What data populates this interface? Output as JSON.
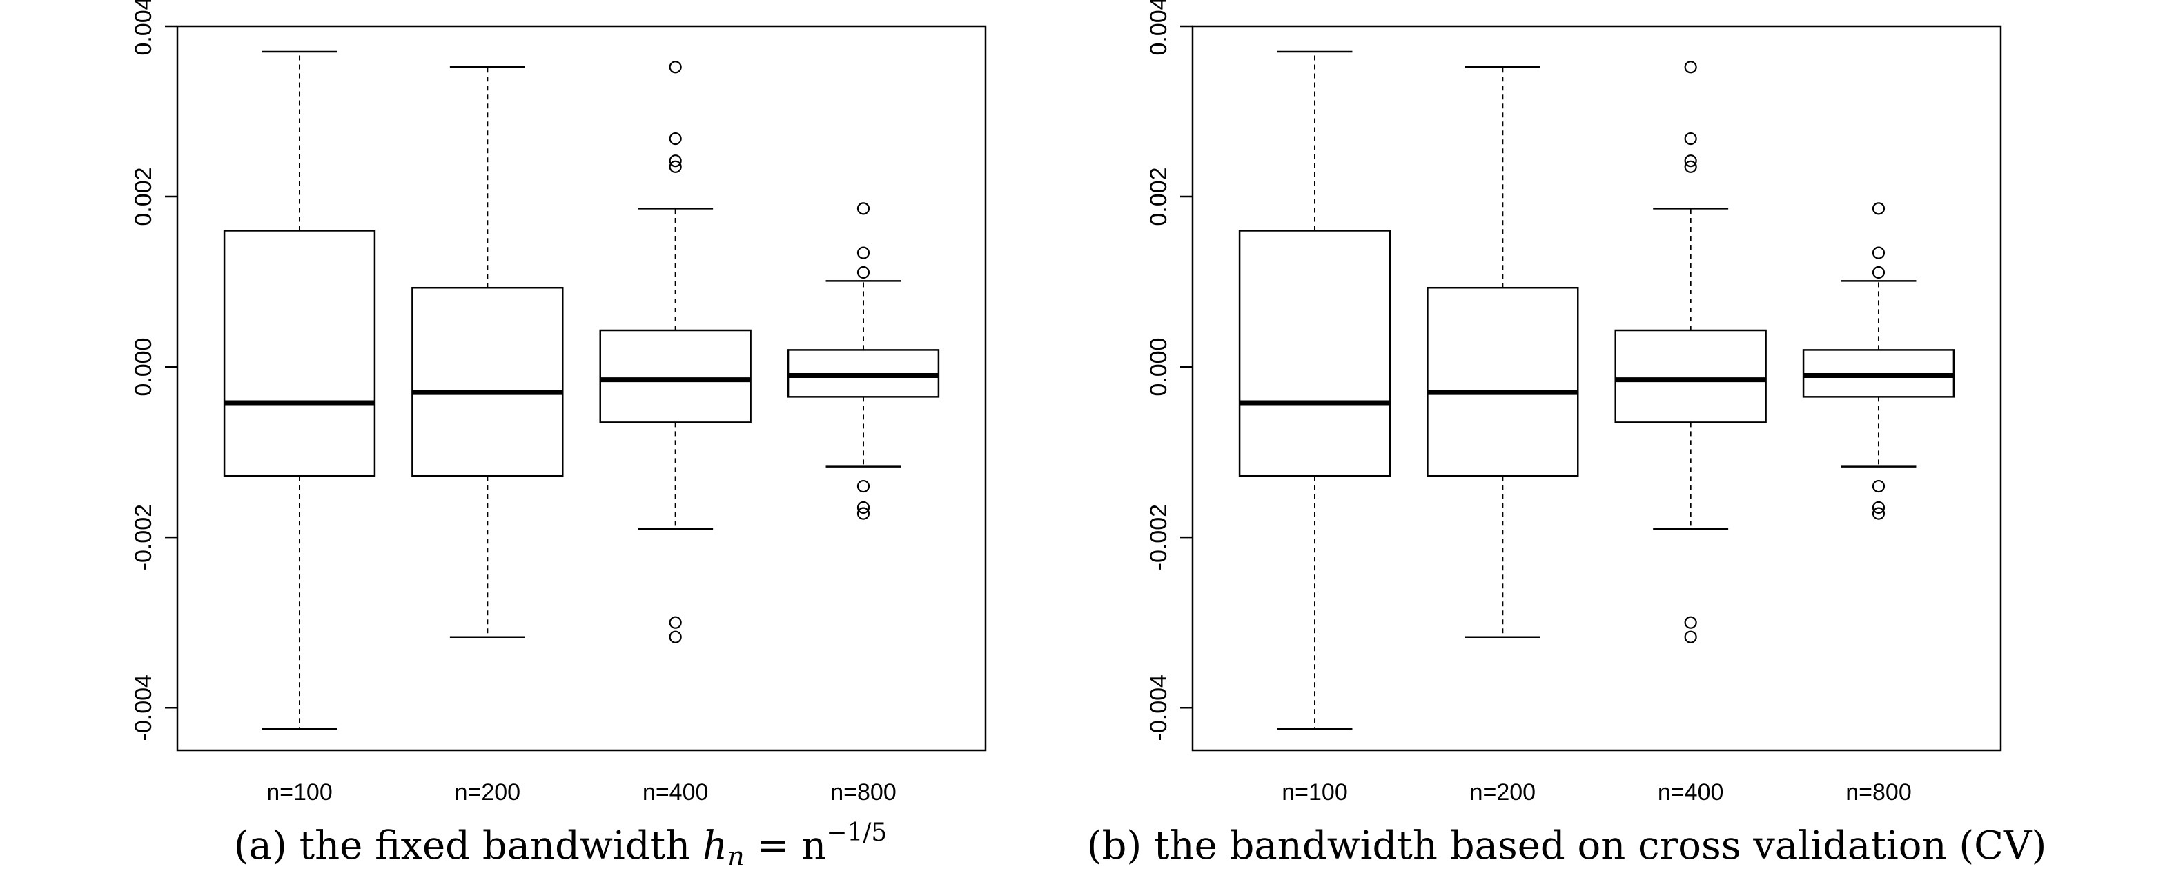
{
  "chart_data": [
    {
      "type": "box",
      "caption_prefix": "(a) the fixed bandwidth ",
      "caption_math": "h",
      "caption_sub": "n",
      "caption_eq": " = n",
      "caption_sup": "−1/5",
      "categories": [
        "n=100",
        "n=200",
        "n=400",
        "n=800"
      ],
      "ylim": [
        -0.0045,
        0.004
      ],
      "yticks": [
        -0.004,
        -0.002,
        0.0,
        0.002,
        0.004
      ],
      "ytick_labels": [
        "-0.004",
        "-0.002",
        "0.000",
        "0.002",
        "0.004"
      ],
      "boxes": [
        {
          "whisker_low": -0.00425,
          "q1": -0.00128,
          "median": -0.00042,
          "q3": 0.0016,
          "whisker_high": 0.0037,
          "outliers": []
        },
        {
          "whisker_low": -0.00317,
          "q1": -0.00128,
          "median": -0.0003,
          "q3": 0.00093,
          "whisker_high": 0.00352,
          "outliers": []
        },
        {
          "whisker_low": -0.0019,
          "q1": -0.00065,
          "median": -0.00015,
          "q3": 0.00043,
          "whisker_high": 0.00186,
          "outliers": [
            0.00352,
            0.00268,
            0.00242,
            0.00235,
            -0.003,
            -0.00317
          ]
        },
        {
          "whisker_low": -0.00117,
          "q1": -0.00035,
          "median": -0.0001,
          "q3": 0.0002,
          "whisker_high": 0.00101,
          "outliers": [
            0.00186,
            0.00134,
            0.00111,
            -0.0014,
            -0.00165,
            -0.00172
          ]
        }
      ]
    },
    {
      "type": "box",
      "caption_prefix": "(b) the bandwidth based on cross validation (CV)",
      "categories": [
        "n=100",
        "n=200",
        "n=400",
        "n=800"
      ],
      "ylim": [
        -0.0045,
        0.004
      ],
      "yticks": [
        -0.004,
        -0.002,
        0.0,
        0.002,
        0.004
      ],
      "ytick_labels": [
        "-0.004",
        "-0.002",
        "0.000",
        "0.002",
        "0.004"
      ],
      "boxes": [
        {
          "whisker_low": -0.00425,
          "q1": -0.00128,
          "median": -0.00042,
          "q3": 0.0016,
          "whisker_high": 0.0037,
          "outliers": []
        },
        {
          "whisker_low": -0.00317,
          "q1": -0.00128,
          "median": -0.0003,
          "q3": 0.00093,
          "whisker_high": 0.00352,
          "outliers": []
        },
        {
          "whisker_low": -0.0019,
          "q1": -0.00065,
          "median": -0.00015,
          "q3": 0.00043,
          "whisker_high": 0.00186,
          "outliers": [
            0.00352,
            0.00268,
            0.00242,
            0.00235,
            -0.003,
            -0.00317
          ]
        },
        {
          "whisker_low": -0.00117,
          "q1": -0.00035,
          "median": -0.0001,
          "q3": 0.0002,
          "whisker_high": 0.00101,
          "outliers": [
            0.00186,
            0.00134,
            0.00111,
            -0.0014,
            -0.00165,
            -0.00172
          ]
        }
      ]
    }
  ]
}
